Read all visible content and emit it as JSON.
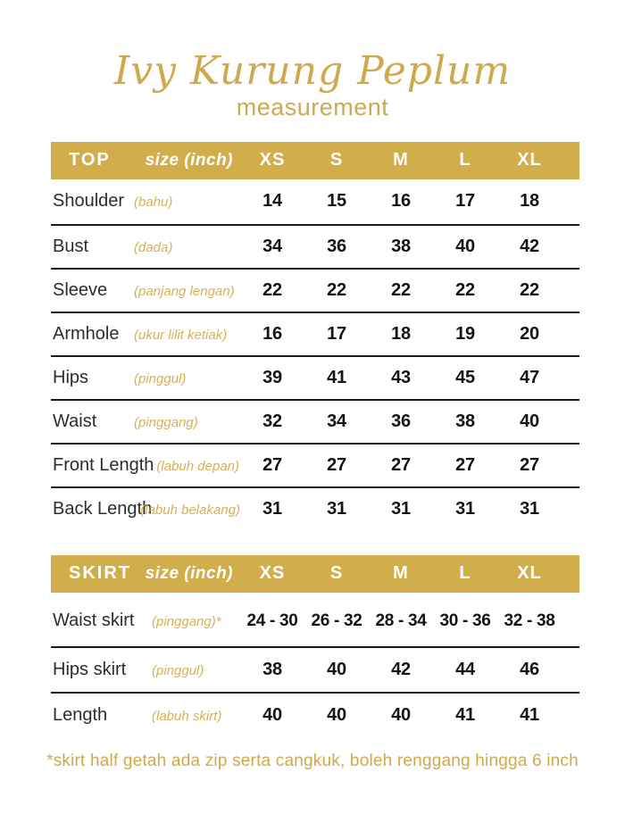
{
  "page": {
    "title": "Ivy Kurung Peplum",
    "subtitle": "measurement",
    "footnote": "*skirt half getah ada zip serta cangkuk, boleh renggang hingga 6 inch"
  },
  "colors": {
    "gold_bar": "#D1AE4B",
    "gold_text": "#CFA94D",
    "gold_italic_labels": "#D9B055",
    "row_label_text": "#2D2D2D",
    "value_text": "#141414",
    "divider": "#1A1A1A",
    "header_text": "#FFFFFF",
    "background": "#FFFFFF"
  },
  "chart_data": [
    {
      "type": "table",
      "name": "TOP",
      "unit_label": "size (inch)",
      "columns": [
        "XS",
        "S",
        "M",
        "L",
        "XL"
      ],
      "rows": [
        {
          "label": "Shoulder",
          "translation": "(bahu)",
          "values": [
            "14",
            "15",
            "16",
            "17",
            "18"
          ]
        },
        {
          "label": "Bust",
          "translation": "(dada)",
          "values": [
            "34",
            "36",
            "38",
            "40",
            "42"
          ]
        },
        {
          "label": "Sleeve",
          "translation": "(panjang lengan)",
          "values": [
            "22",
            "22",
            "22",
            "22",
            "22"
          ]
        },
        {
          "label": "Armhole",
          "translation": "(ukur lilit ketiak)",
          "values": [
            "16",
            "17",
            "18",
            "19",
            "20"
          ]
        },
        {
          "label": "Hips",
          "translation": "(pinggul)",
          "values": [
            "39",
            "41",
            "43",
            "45",
            "47"
          ]
        },
        {
          "label": "Waist",
          "translation": "(pinggang)",
          "values": [
            "32",
            "34",
            "36",
            "38",
            "40"
          ]
        },
        {
          "label": "Front Length",
          "translation": "(labuh depan)",
          "values": [
            "27",
            "27",
            "27",
            "27",
            "27"
          ]
        },
        {
          "label": "Back Length",
          "translation": "(labuh belakang)",
          "values": [
            "31",
            "31",
            "31",
            "31",
            "31"
          ]
        }
      ]
    },
    {
      "type": "table",
      "name": "SKIRT",
      "unit_label": "size (inch)",
      "columns": [
        "XS",
        "S",
        "M",
        "L",
        "XL"
      ],
      "rows": [
        {
          "label": "Waist skirt",
          "translation": "(pinggang)*",
          "values": [
            "24 - 30",
            "26 - 32",
            "28 - 34",
            "30 - 36",
            "32 - 38"
          ]
        },
        {
          "label": "Hips skirt",
          "translation": "(pinggul)",
          "values": [
            "38",
            "40",
            "42",
            "44",
            "46"
          ]
        },
        {
          "label": "Length",
          "translation": "(labuh skirt)",
          "values": [
            "40",
            "40",
            "40",
            "41",
            "41"
          ]
        }
      ]
    }
  ]
}
